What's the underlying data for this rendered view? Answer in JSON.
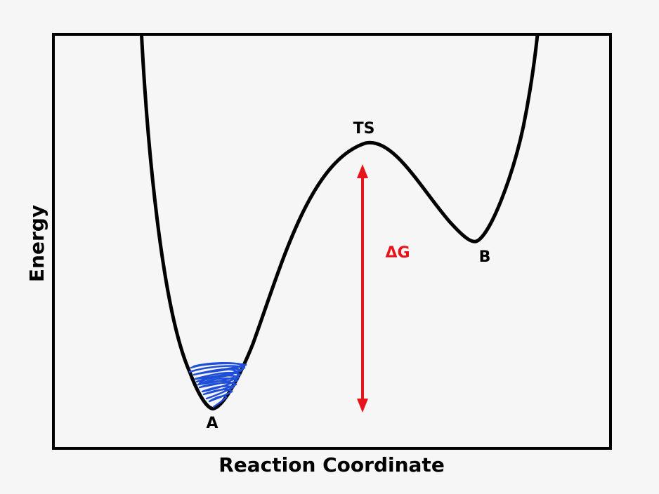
{
  "diagram": {
    "y_axis_label": "Energy",
    "x_axis_label": "Reaction Coordinate",
    "points": {
      "reactant": "A",
      "transition_state": "TS",
      "product": "B"
    },
    "barrier_label": "ΔG",
    "colors": {
      "background": "#f5f6f5",
      "frame": "#000000",
      "curve": "#000000",
      "barrier_arrow": "#e8141b",
      "particle_trace": "#1f4fd8"
    }
  }
}
